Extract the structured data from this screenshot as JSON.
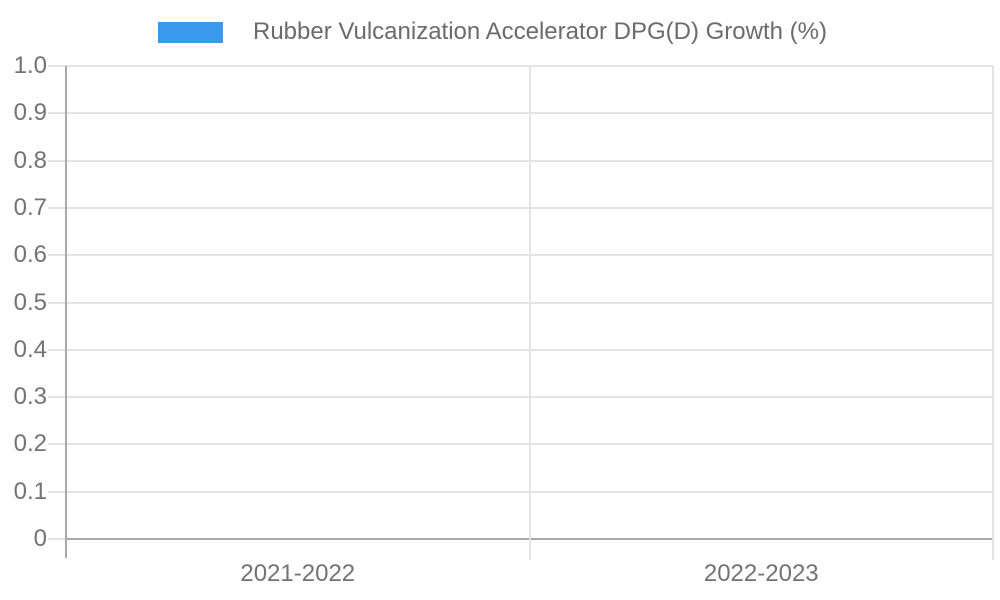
{
  "legend": {
    "swatch_color": "#3b99ec",
    "label": "Rubber Vulcanization Accelerator DPG(D) Growth (%)"
  },
  "chart_data": {
    "type": "bar",
    "title": "Rubber Vulcanization Accelerator DPG(D) Growth (%)",
    "categories": [
      "2021-2022",
      "2022-2023"
    ],
    "series": [
      {
        "name": "Rubber Vulcanization Accelerator DPG(D) Growth (%)",
        "color": "#3b99ec",
        "values": []
      }
    ],
    "xlabel": "",
    "ylabel": "",
    "ylim": [
      0,
      1.0
    ],
    "ytick_step": 0.1,
    "yticks": [
      "1.0",
      "0.9",
      "0.8",
      "0.7",
      "0.6",
      "0.5",
      "0.4",
      "0.3",
      "0.2",
      "0.1",
      "0"
    ],
    "grid": true,
    "legend_position": "top-center",
    "colors": {
      "gridline": "#e4e4e4",
      "axis_line": "#a9a9a9",
      "tick_label": "#737373",
      "legend_label": "#6b6b6b",
      "background": "#ffffff"
    }
  }
}
